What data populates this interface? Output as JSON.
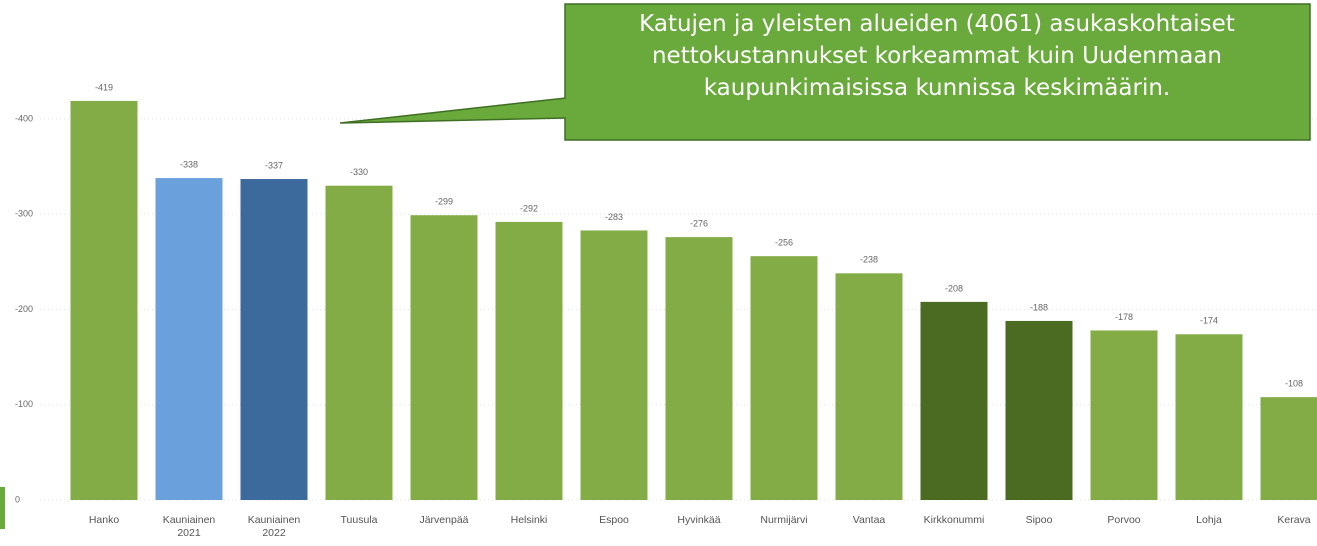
{
  "chart_data": {
    "type": "bar",
    "categories": [
      "Hanko",
      "Kauniainen 2021",
      "Kauniainen 2022",
      "Tuusula",
      "Järvenpää",
      "Helsinki",
      "Espoo",
      "Hyvinkää",
      "Nurmijärvi",
      "Vantaa",
      "Kirkkonummi",
      "Sipoo",
      "Porvoo",
      "Lohja",
      "Kerava"
    ],
    "values": [
      -419,
      -338,
      -337,
      -330,
      -299,
      -292,
      -283,
      -276,
      -256,
      -238,
      -208,
      -188,
      -178,
      -174,
      -108
    ],
    "colors": [
      "#84ac46",
      "#6aa0dc",
      "#3d6a9c",
      "#84ac46",
      "#84ac46",
      "#84ac46",
      "#84ac46",
      "#84ac46",
      "#84ac46",
      "#84ac46",
      "#4b6b23",
      "#4b6b23",
      "#84ac46",
      "#84ac46",
      "#84ac46"
    ],
    "ylim": [
      0,
      -450
    ],
    "yticks": [
      0,
      -100,
      -200,
      -300,
      -400
    ],
    "grid": true,
    "annotation_lines": [
      "Katujen ja yleisten alueiden (4061) asukaskohtaiset",
      "nettokustannukset korkeammat kuin Uudenmaan",
      "kaupunkimaisissa kunnissa keskimäärin."
    ]
  }
}
